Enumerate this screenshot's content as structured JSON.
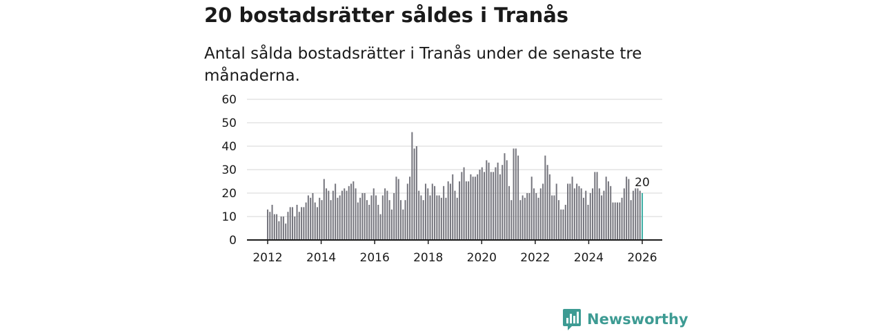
{
  "header": {
    "title": "20 bostadsrätter såldes i Tranås",
    "subtitle": "Antal sålda bostadsrätter i Tranås under de senaste tre månaderna."
  },
  "brand": {
    "name": "Newsworthy",
    "color": "#3d9b93"
  },
  "colors": {
    "bar": "#76767e",
    "highlight": "#3fb0a6",
    "grid": "#d4d4d4",
    "axis": "#1a1a1a"
  },
  "chart_data": {
    "type": "bar",
    "title": "20 bostadsrätter såldes i Tranås",
    "xlabel": "",
    "ylabel": "",
    "ylim": [
      0,
      60
    ],
    "yticks": [
      "0",
      "10",
      "20",
      "30",
      "40",
      "50",
      "60"
    ],
    "xticks": [
      "2012",
      "2014",
      "2016",
      "2018",
      "2020",
      "2022",
      "2024",
      "2026"
    ],
    "grid": true,
    "x_start": "2012-01",
    "x_end": "2026-01",
    "highlight_label": "20",
    "values": [
      13,
      12,
      15,
      11,
      11,
      8,
      10,
      10,
      7,
      12,
      14,
      14,
      10,
      15,
      12,
      14,
      14,
      16,
      19,
      18,
      20,
      16,
      14,
      18,
      17,
      26,
      22,
      21,
      17,
      21,
      24,
      18,
      19,
      21,
      22,
      21,
      23,
      24,
      25,
      22,
      16,
      18,
      20,
      20,
      17,
      15,
      19,
      22,
      19,
      15,
      11,
      19,
      22,
      21,
      17,
      13,
      20,
      27,
      26,
      17,
      13,
      17,
      24,
      27,
      46,
      39,
      40,
      21,
      19,
      17,
      24,
      22,
      19,
      24,
      23,
      19,
      19,
      18,
      23,
      18,
      25,
      24,
      28,
      21,
      18,
      25,
      29,
      31,
      25,
      25,
      28,
      27,
      27,
      28,
      30,
      31,
      29,
      34,
      33,
      29,
      29,
      31,
      33,
      28,
      32,
      37,
      34,
      23,
      17,
      39,
      39,
      36,
      17,
      19,
      18,
      20,
      20,
      27,
      22,
      20,
      18,
      22,
      24,
      36,
      32,
      28,
      19,
      19,
      24,
      17,
      13,
      13,
      15,
      24,
      24,
      27,
      22,
      24,
      23,
      22,
      18,
      21,
      15,
      20,
      22,
      29,
      29,
      22,
      19,
      21,
      27,
      25,
      23,
      16,
      16,
      16,
      16,
      18,
      22,
      27,
      26,
      17,
      21,
      22,
      22,
      21,
      20
    ]
  }
}
